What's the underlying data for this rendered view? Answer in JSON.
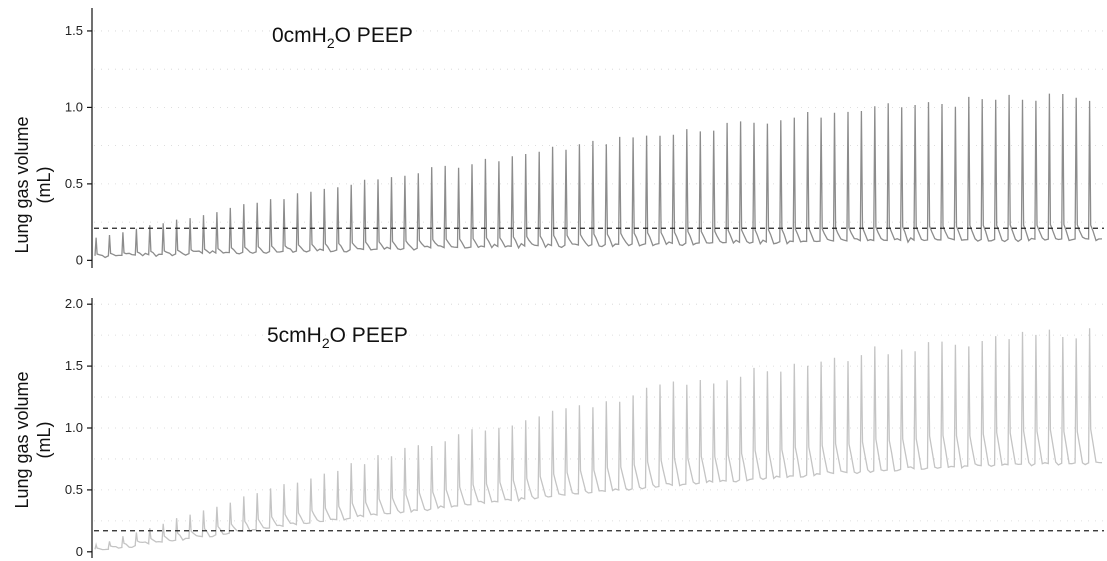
{
  "chart_data": [
    {
      "type": "line",
      "title": "",
      "ylabel_line1": "Lung gas volume",
      "ylabel_line2": "(mL)",
      "xlabel": "",
      "ylim": [
        -0.05,
        1.65
      ],
      "yticks": [
        {
          "value": 0,
          "label": "0"
        },
        {
          "value": 0.5,
          "label": "0.5"
        },
        {
          "value": 1.0,
          "label": "1.0"
        },
        {
          "value": 1.5,
          "label": "1.5"
        }
      ],
      "annotation": {
        "prefix": "0cmH",
        "sub": "2",
        "suffix": "O PEEP"
      },
      "threshold": 0.21,
      "grid": true,
      "series": [
        {
          "color": "#8c8c8c",
          "breaths": 75,
          "baseline_start": 0.03,
          "baseline_end": 0.14,
          "peak_start": 0.15,
          "peak_end": 1.08,
          "plateau": 0.1
        }
      ]
    },
    {
      "type": "line",
      "title": "",
      "ylabel_line1": "Lung gas volume",
      "ylabel_line2": "(mL)",
      "xlabel": "",
      "ylim": [
        -0.05,
        2.05
      ],
      "yticks": [
        {
          "value": 0,
          "label": "0"
        },
        {
          "value": 0.5,
          "label": "0.5"
        },
        {
          "value": 1.0,
          "label": "1.0"
        },
        {
          "value": 1.5,
          "label": "1.5"
        },
        {
          "value": 2.0,
          "label": "2.0"
        }
      ],
      "annotation": {
        "prefix": "5cmH",
        "sub": "2",
        "suffix": "O PEEP"
      },
      "threshold": 0.17,
      "grid": true,
      "series": [
        {
          "color": "#c4c4c4",
          "breaths": 75,
          "baseline_start": 0.02,
          "baseline_end": 0.72,
          "peak_start": 0.05,
          "peak_end": 1.78,
          "plateau": 0.25
        }
      ]
    }
  ]
}
